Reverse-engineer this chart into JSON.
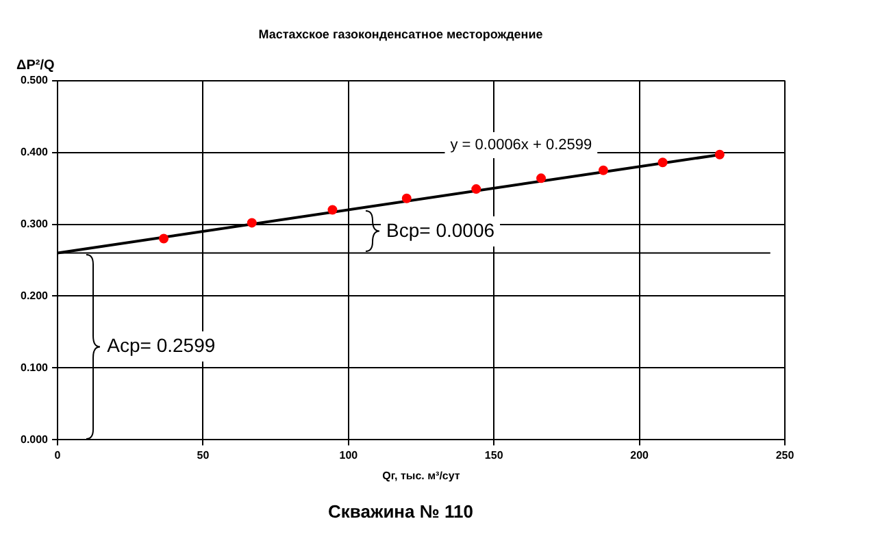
{
  "chart_data": {
    "type": "scatter",
    "title": "Мастахское газоконденсатное месторождение",
    "subtitle": "Скважина № 110",
    "xlabel": "Qг, тыс. м³/сут",
    "ylabel": "ΔP²/Q",
    "series": [
      {
        "color": "#ff0000",
        "marker": "circle",
        "x": [
          36.5,
          66.8,
          94.5,
          120,
          143.9,
          166.2,
          187.6,
          208,
          227.6
        ],
        "values": [
          0.28,
          0.302,
          0.32,
          0.336,
          0.349,
          0.364,
          0.375,
          0.386,
          0.397
        ]
      },
      {
        "type": "line",
        "color": "#000000",
        "marker": "none",
        "x": [
          0,
          228
        ],
        "values": [
          0.26,
          0.397
        ]
      }
    ],
    "ref_lines": [
      {
        "axis": "y",
        "value": 0.2599,
        "color": "#000000"
      }
    ],
    "annotations": [
      "y = 0.0006x + 0.2599",
      "Bср= 0.0006",
      "Aср= 0.2599"
    ],
    "xlim": [
      0,
      250
    ],
    "xticks": [
      0,
      50,
      100,
      150,
      200,
      250
    ],
    "ylim": [
      0,
      0.5
    ],
    "yticks": [
      {
        "value": 0,
        "label": "0.000"
      },
      {
        "value": 0.1,
        "label": "0.100"
      },
      {
        "value": 0.2,
        "label": "0.200"
      },
      {
        "value": 0.3,
        "label": "0.300"
      },
      {
        "value": 0.4,
        "label": "0.400"
      },
      {
        "value": 0.5,
        "label": "0.500"
      }
    ],
    "grid": true,
    "legend": false
  }
}
